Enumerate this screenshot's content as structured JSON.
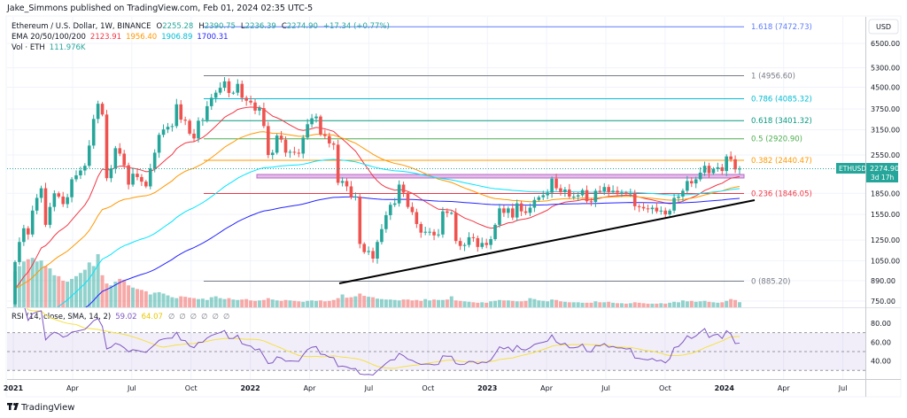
{
  "header": {
    "publisher": "Jake_Simmons published on TradingView.com, Feb 01, 2024 02:35 UTC-5"
  },
  "legend": {
    "symbol": "Ethereum / U.S. Dollar, 1W, BINANCE",
    "open_label": "O",
    "open": "2255.28",
    "high_label": "H",
    "high": "2390.75",
    "low_label": "L",
    "low": "2236.39",
    "close_label": "C",
    "close": "2274.90",
    "change": "+17.34 (+0.77%)",
    "ema_label": "EMA 20/50/100/200",
    "ema_values": [
      "2123.91",
      "1956.40",
      "1906.89",
      "1700.31"
    ],
    "vol_label": "Vol · ETH",
    "vol_value": "111.976K",
    "rsi_label": "RSI (14, close, SMA, 14, 2)",
    "rsi_value": "59.02",
    "rsi_sma_value": "64.07",
    "rsi_empty_values": [
      "∅",
      "∅",
      "∅",
      "∅",
      "∅",
      "∅"
    ]
  },
  "price_axis": {
    "currency": "USD",
    "ticks": [
      "6500.00",
      "5300.00",
      "4500.00",
      "3750.00",
      "3150.00",
      "2550.00",
      "1850.00",
      "1550.00",
      "1250.00",
      "1050.00",
      "890.00",
      "750.00"
    ],
    "last_symbol": "ETHUSD",
    "last_price": "2274.90",
    "countdown": "3d 17h"
  },
  "rsi_axis": {
    "ticks": [
      "80.00",
      "60.00",
      "40.00"
    ]
  },
  "time_axis": {
    "ticks": [
      "2021",
      "Apr",
      "Jul",
      "Oct",
      "2022",
      "Apr",
      "Jul",
      "Oct",
      "2023",
      "Apr",
      "Jul",
      "Oct",
      "2024",
      "Apr",
      "Jul"
    ]
  },
  "fib_levels": [
    {
      "label": "1.618 (7472.73)",
      "price": 7472.73,
      "color": "#5b7cfa"
    },
    {
      "label": "1 (4956.60)",
      "price": 4956.6,
      "color": "#787b86"
    },
    {
      "label": "0.786 (4085.32)",
      "price": 4085.32,
      "color": "#00bcd4"
    },
    {
      "label": "0.618 (3401.32)",
      "price": 3401.32,
      "color": "#089981"
    },
    {
      "label": "0.5 (2920.90)",
      "price": 2920.9,
      "color": "#4caf50"
    },
    {
      "label": "0.382 (2440.47)",
      "price": 2440.47,
      "color": "#ff9800"
    },
    {
      "label": "0.236 (1846.05)",
      "price": 1846.05,
      "color": "#f23645"
    },
    {
      "label": "0 (885.20)",
      "price": 885.2,
      "color": "#787b86"
    }
  ],
  "colors": {
    "up": "#26a69a",
    "down": "#ef5350",
    "ema": [
      "#f23645",
      "#ff9800",
      "#00e5ff",
      "#2424ff"
    ],
    "rsi": "#7e57c2",
    "rsi_sma": "#f5e042",
    "support_zone": "#ba68c8",
    "trendline": "#000000"
  },
  "footer": {
    "brand": "TradingView"
  },
  "chart_data": {
    "type": "candlestick",
    "interval": "1W",
    "scale": "log",
    "ylim": [
      700,
      7800
    ],
    "start": "2021-01-04",
    "first_open": 730,
    "close": [
      1040,
      1230,
      1380,
      1310,
      1600,
      1780,
      1930,
      1420,
      1650,
      1850,
      1800,
      1690,
      1790,
      2080,
      2150,
      2240,
      2330,
      2760,
      3450,
      3920,
      3580,
      2100,
      2280,
      2700,
      2580,
      2340,
      1990,
      2180,
      2120,
      2040,
      1960,
      2280,
      2600,
      3020,
      3160,
      3230,
      3250,
      3900,
      3430,
      3400,
      3050,
      2930,
      3400,
      3420,
      3840,
      4120,
      4300,
      4480,
      4730,
      4290,
      4300,
      4630,
      4120,
      4020,
      3960,
      3700,
      3780,
      3250,
      2550,
      2600,
      3000,
      2900,
      2600,
      2620,
      2600,
      2580,
      2950,
      3300,
      3470,
      3520,
      3030,
      2990,
      2810,
      2780,
      2020,
      2050,
      1960,
      1790,
      1800,
      1210,
      1130,
      1140,
      1070,
      1230,
      1370,
      1540,
      1680,
      1700,
      1990,
      1860,
      1650,
      1580,
      1430,
      1330,
      1340,
      1340,
      1300,
      1310,
      1590,
      1570,
      1570,
      1240,
      1190,
      1200,
      1280,
      1270,
      1180,
      1220,
      1200,
      1260,
      1420,
      1630,
      1570,
      1630,
      1510,
      1700,
      1590,
      1570,
      1640,
      1750,
      1790,
      1820,
      1860,
      2090,
      1930,
      1870,
      1910,
      1800,
      1800,
      1820,
      1900,
      1730,
      1720,
      1890,
      1880,
      1950,
      1870,
      1890,
      1860,
      1860,
      1840,
      1850,
      1660,
      1650,
      1630,
      1620,
      1640,
      1590,
      1600,
      1550,
      1600,
      1780,
      1800,
      1890,
      2050,
      2010,
      2080,
      2200,
      2330,
      2190,
      2270,
      2300,
      2230,
      2520,
      2460,
      2260,
      2275
    ],
    "volume_k": [
      780,
      900,
      1000,
      1050,
      1080,
      1000,
      1020,
      900,
      850,
      700,
      680,
      580,
      560,
      620,
      680,
      750,
      820,
      980,
      900,
      1160,
      700,
      520,
      480,
      560,
      620,
      600,
      480,
      430,
      400,
      380,
      350,
      280,
      320,
      330,
      300,
      260,
      220,
      200,
      240,
      230,
      210,
      200,
      180,
      190,
      160,
      220,
      240,
      200,
      180,
      200,
      170,
      160,
      170,
      180,
      150,
      140,
      150,
      160,
      200,
      170,
      150,
      140,
      160,
      150,
      140,
      130,
      120,
      140,
      150,
      140,
      150,
      130,
      140,
      160,
      200,
      280,
      210,
      220,
      240,
      300,
      250,
      230,
      220,
      190,
      180,
      170,
      170,
      160,
      150,
      170,
      170,
      150,
      160,
      140,
      180,
      150,
      170,
      160,
      160,
      170,
      240,
      150,
      140,
      130,
      120,
      110,
      100,
      110,
      100,
      130,
      140,
      160,
      150,
      150,
      140,
      130,
      130,
      140,
      200,
      180,
      150,
      140,
      130,
      170,
      160,
      130,
      120,
      110,
      110,
      110,
      100,
      100,
      100,
      130,
      110,
      110,
      120,
      100,
      90,
      90,
      80,
      90,
      110,
      100,
      90,
      80,
      80,
      80,
      90,
      80,
      100,
      120,
      110,
      150,
      130,
      140,
      120,
      130,
      140,
      120,
      110,
      100,
      110,
      140,
      180,
      160,
      112
    ],
    "ema_periods": [
      20,
      50,
      100,
      200
    ],
    "support_zone": [
      2100,
      2160
    ],
    "trendline": [
      {
        "date": "2022-06-13",
        "price": 880
      },
      {
        "date": "2024-02-05",
        "price": 1720
      }
    ],
    "rsi_bands": [
      70,
      50,
      30
    ]
  }
}
